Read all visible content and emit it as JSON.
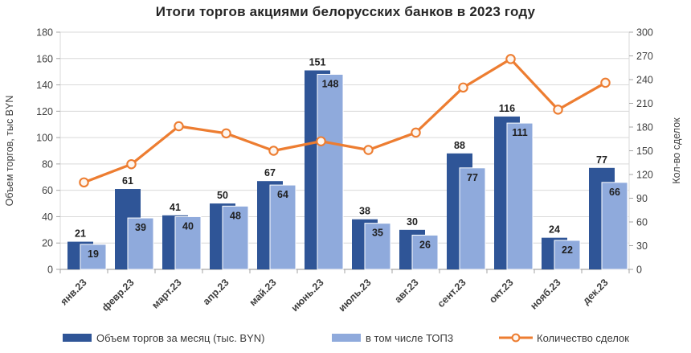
{
  "title": "Итоги торгов акциями белорусских банков в 2023 году",
  "colors": {
    "volume_bar": "#2F5597",
    "top3_bar": "#8FAADC",
    "top3_border": "#FFFFFF",
    "deals_line": "#ED7D31",
    "marker_fill": "#FDF6F0",
    "grid": "#D9D9D9",
    "axis_line": "#BFBFBF",
    "tick_mark": "#A6A6A6",
    "tick_text": "#404040",
    "bar_label_text": "#1F1F1F",
    "title_text": "#262626"
  },
  "chart_data": {
    "type": "combo: grouped bars + line (secondary axis)",
    "title": "Итоги торгов акциями белорусских банков в 2023 году",
    "categories": [
      "янв.23",
      "февр.23",
      "март.23",
      "апр.23",
      "май.23",
      "июнь.23",
      "июль.23",
      "авг.23",
      "сент.23",
      "окт.23",
      "нояб.23",
      "дек.23"
    ],
    "series": [
      {
        "name": "Объем торгов за месяц (тыс. BYN)",
        "type": "bar",
        "axis": "left",
        "values": [
          21,
          61,
          41,
          50,
          67,
          151,
          38,
          30,
          88,
          116,
          24,
          77
        ]
      },
      {
        "name": "в том числе ТОП3",
        "type": "bar",
        "axis": "left",
        "values": [
          19,
          39,
          40,
          48,
          64,
          148,
          35,
          26,
          77,
          111,
          22,
          66
        ]
      },
      {
        "name": "Количество сделок",
        "type": "line",
        "axis": "right",
        "values_estimated_from_pixels": true,
        "values": [
          110,
          133,
          181,
          172,
          150,
          162,
          151,
          173,
          230,
          266,
          202,
          236
        ]
      }
    ],
    "left_axis": {
      "title": "Объем торгов, тыс BYN",
      "min": 0,
      "max": 180,
      "step": 20
    },
    "right_axis": {
      "title": "Кол-во сделок",
      "min": 0,
      "max": 300,
      "step": 30
    },
    "bar_labels_shown": true,
    "line_labels_shown": false,
    "grid": "horizontal only",
    "legend_position": "bottom"
  },
  "legend": {
    "items": [
      {
        "label": "Объем торгов за месяц (тыс. BYN)",
        "swatch": "dark-blue-rect"
      },
      {
        "label": "в том числе ТОП3",
        "swatch": "light-blue-rect"
      },
      {
        "label": "Количество сделок",
        "swatch": "orange-line-with-marker"
      }
    ]
  }
}
